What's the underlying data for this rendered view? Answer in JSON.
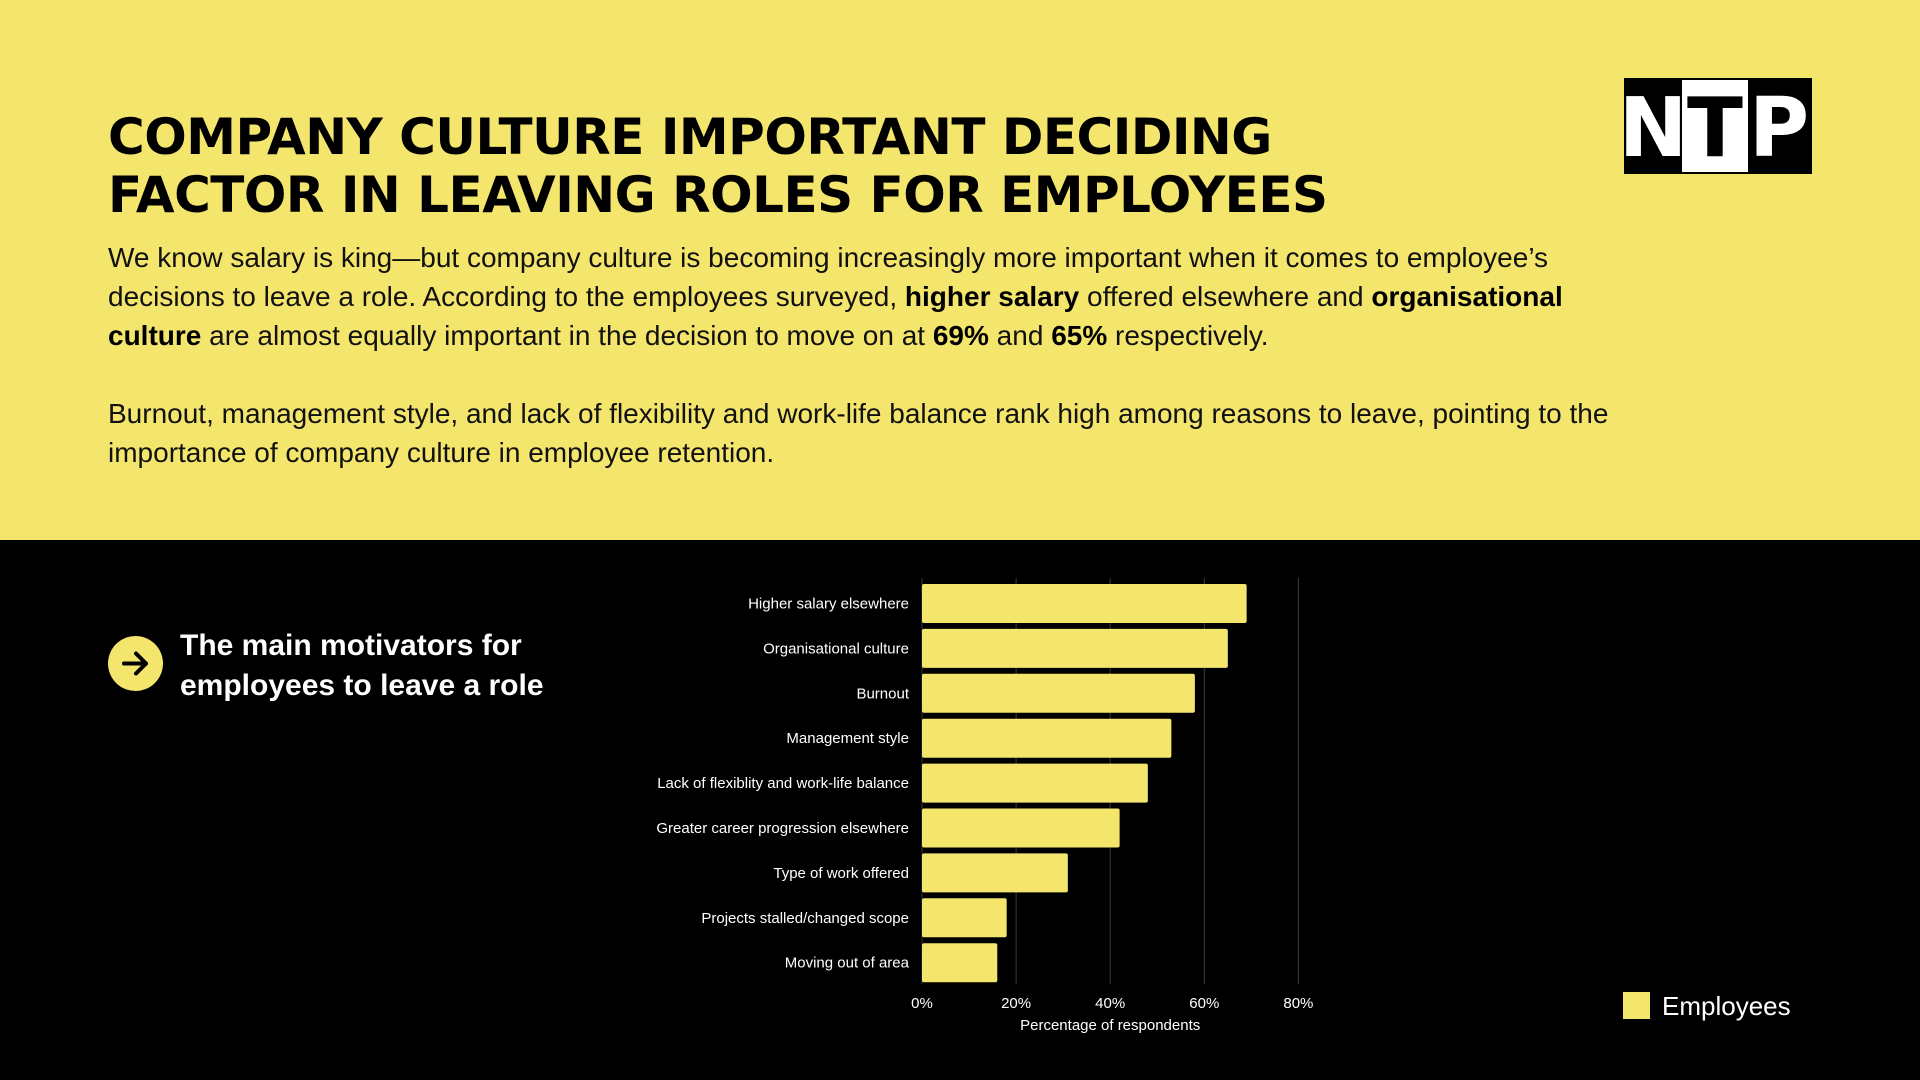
{
  "header": {
    "title_line1": "COMPANY CULTURE IMPORTANT DECIDING",
    "title_line2": "FACTOR IN LEAVING ROLES FOR EMPLOYEES",
    "para1": {
      "t1": "We know salary is king—but company culture is becoming increasingly more important when it comes to employee’s decisions to leave a role. According to the employees surveyed, ",
      "b1": "higher salary",
      "t2": " offered elsewhere and ",
      "b2": "organisational culture",
      "t3": " are almost equally important in the decision to move on at ",
      "b3": "69%",
      "t4": " and ",
      "b4": "65%",
      "t5": " respectively."
    },
    "para2": "Burnout, management style, and lack of flexibility and work-life balance rank high among reasons to leave, pointing to the importance of company culture in employee retention."
  },
  "logo": {
    "letters": [
      "N",
      "T",
      "P"
    ]
  },
  "section": {
    "line1": "The main motivators for",
    "line2": "employees to leave a role",
    "icon": "arrow-right-icon"
  },
  "colors": {
    "accent": "#F4E56C",
    "dark": "#000000",
    "text_light": "#FFFFFF",
    "grid": "#3a3a3a"
  },
  "chart_data": {
    "type": "bar",
    "orientation": "horizontal",
    "categories": [
      "Higher salary elsewhere",
      "Organisational culture",
      "Burnout",
      "Management style",
      "Lack of flexiblity and work-life balance",
      "Greater career progression elsewhere",
      "Type of work offered",
      "Projects stalled/changed scope",
      "Moving out of area"
    ],
    "series": [
      {
        "name": "Employees",
        "values": [
          69,
          65,
          58,
          53,
          48,
          42,
          31,
          18,
          16
        ]
      }
    ],
    "xlabel": "Percentage of respondents",
    "ylabel": "",
    "xlim": [
      0,
      80
    ],
    "xticks": [
      "0%",
      "20%",
      "40%",
      "60%",
      "80%"
    ],
    "grid": true,
    "legend": "bottom-right"
  }
}
